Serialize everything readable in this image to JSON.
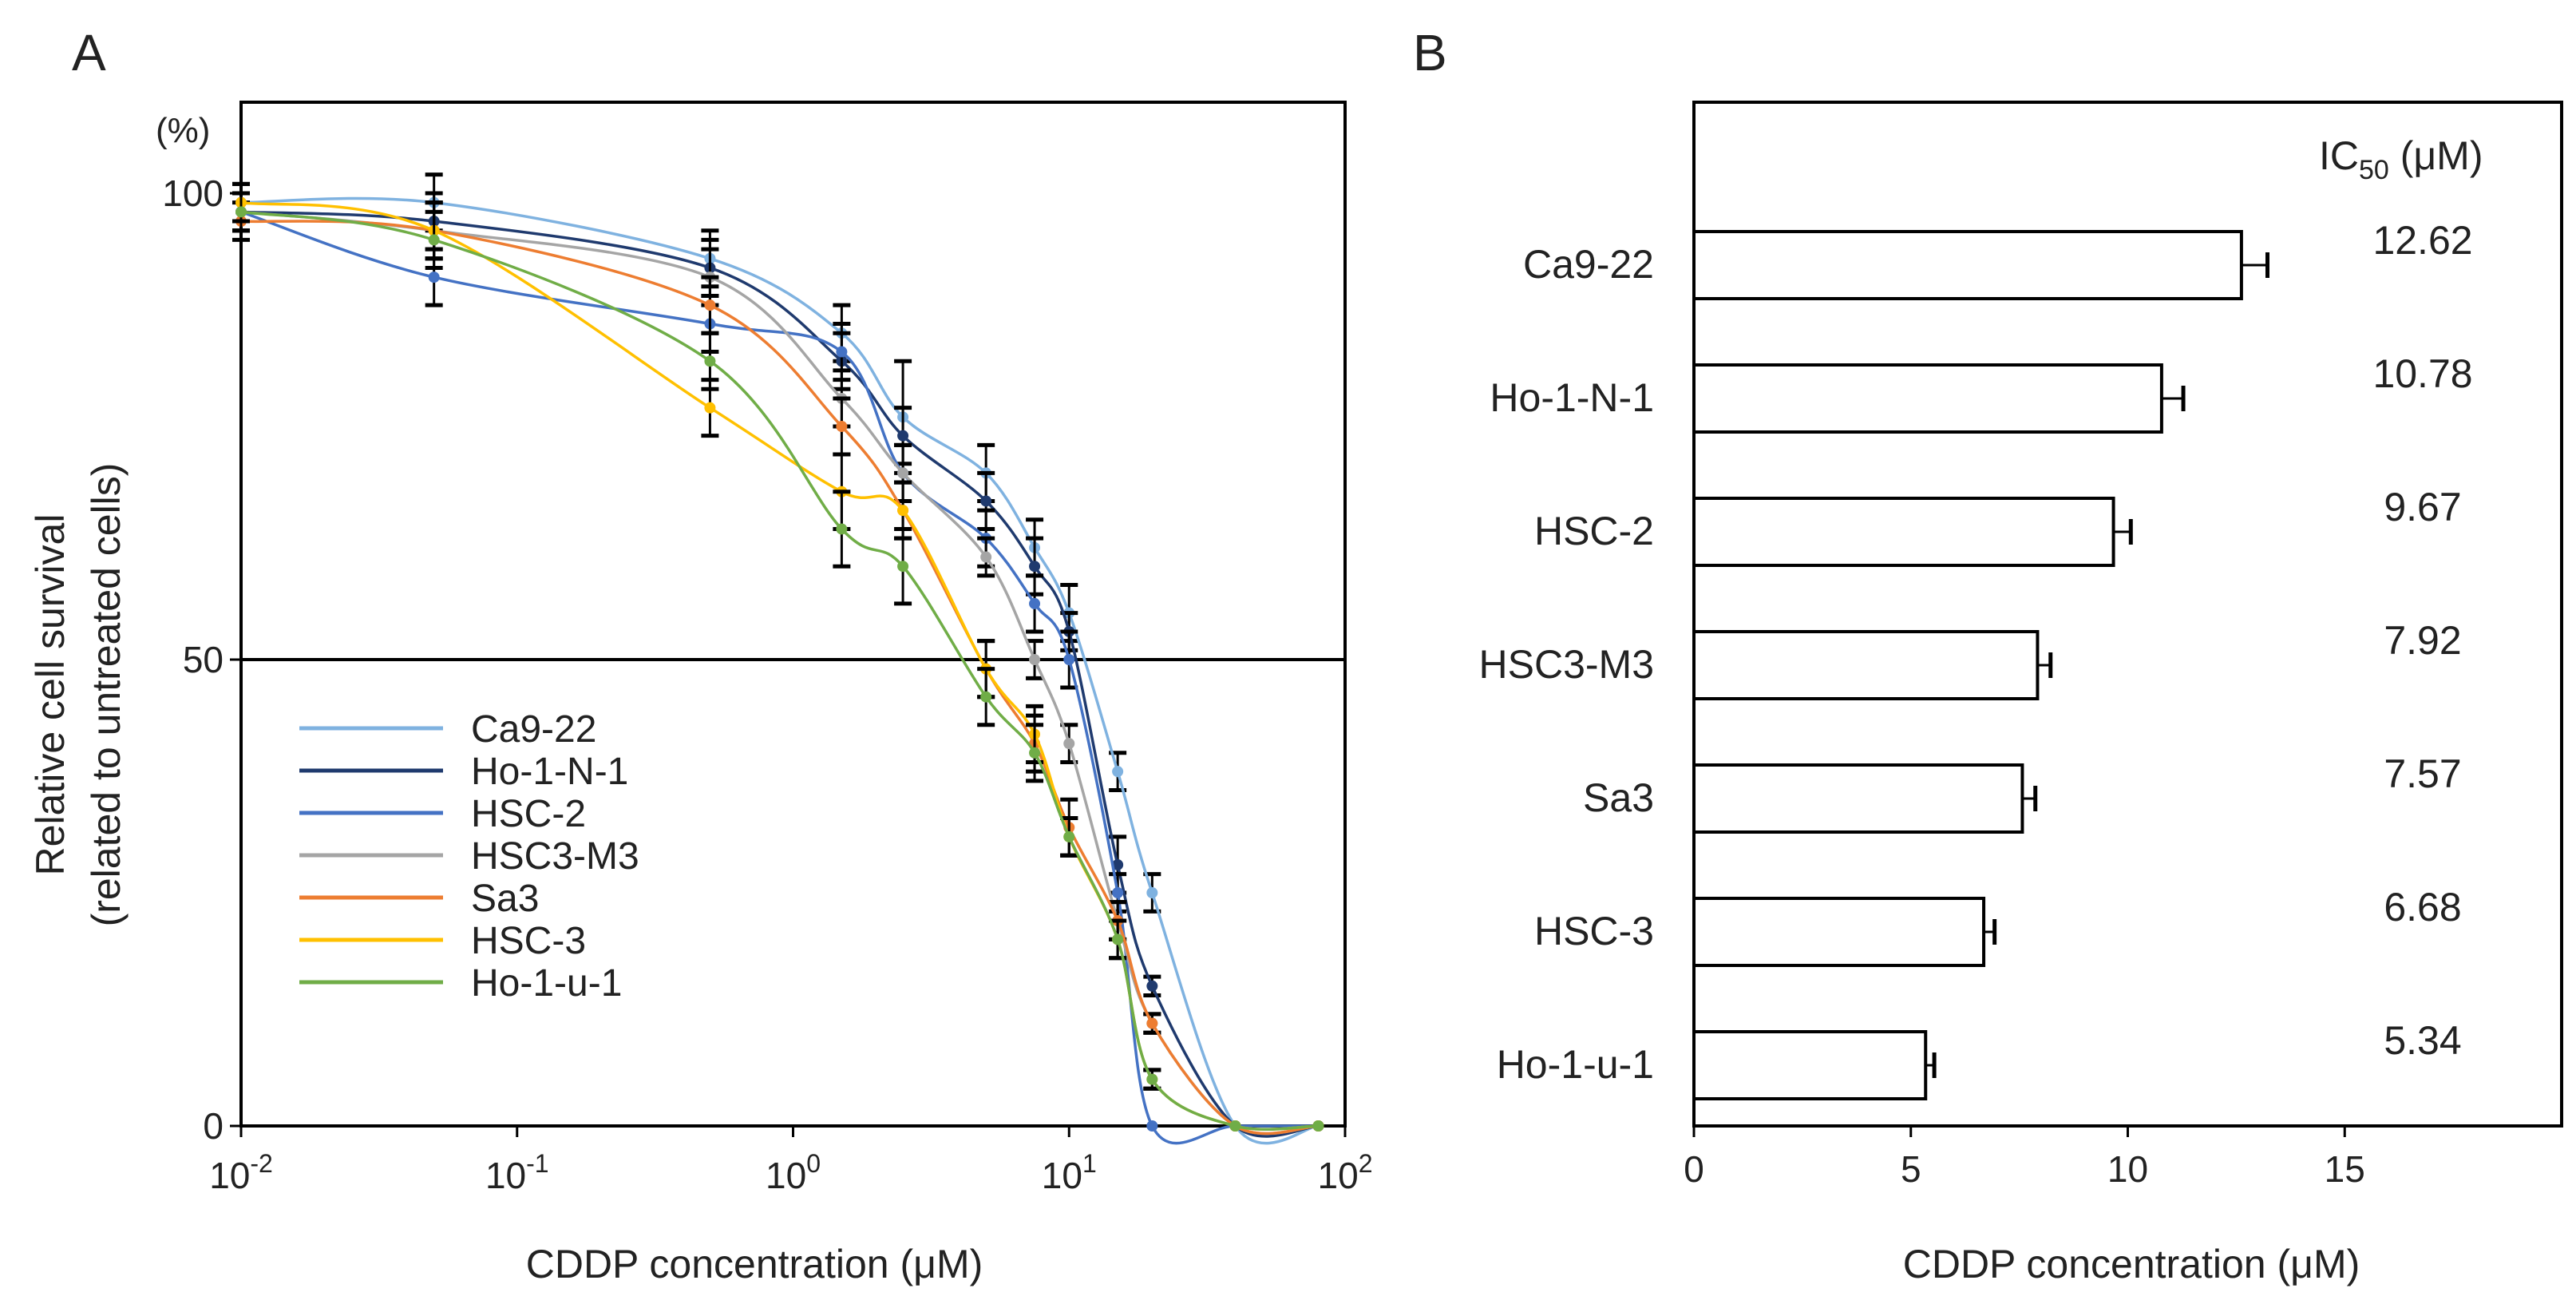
{
  "panel_a": {
    "letter": "A",
    "ylabel_line1": "Relative cell survival",
    "ylabel_line2": "(related to untreated cells)",
    "yunit": "(%)",
    "xlabel": "CDDP concentration (μM)"
  },
  "panel_b": {
    "letter": "B",
    "ic50_header": "IC",
    "ic50_sub": "50",
    "ic50_unit": " (μM)",
    "xlabel": "CDDP concentration (μM)"
  },
  "chart_data": [
    {
      "type": "line",
      "title": "",
      "xlabel": "CDDP concentration (μM)",
      "ylabel": "Relative cell survival (related to untreated cells) (%)",
      "xscale": "log",
      "xlim": [
        0.01,
        100
      ],
      "ylim": [
        0,
        110
      ],
      "yticks": [
        0,
        50,
        100
      ],
      "xticks": [
        {
          "value": 0.01,
          "base": "10",
          "exp": "-2"
        },
        {
          "value": 0.1,
          "base": "10",
          "exp": "-1"
        },
        {
          "value": 1,
          "base": "10",
          "exp": "0"
        },
        {
          "value": 10,
          "base": "10",
          "exp": "1"
        },
        {
          "value": 100,
          "base": "10",
          "exp": "2"
        }
      ],
      "reference_line_y": 50,
      "legend_position": "lower-left",
      "x": [
        0.01,
        0.05,
        0.5,
        1.5,
        2.5,
        5,
        7.5,
        10,
        15,
        20,
        40,
        80
      ],
      "series": [
        {
          "name": "Ca9-22",
          "color": "#7fb2e0",
          "values": [
            99,
            99,
            93,
            85,
            76,
            70,
            62,
            55,
            38,
            25,
            0,
            0
          ],
          "errors": [
            2,
            3,
            3,
            3,
            6,
            3,
            3,
            3,
            2,
            2,
            0,
            0
          ]
        },
        {
          "name": "Ho-1-N-1",
          "color": "#1f3a6e",
          "values": [
            98,
            97,
            92,
            82,
            74,
            67,
            60,
            53,
            28,
            15,
            0,
            0
          ],
          "errors": [
            2,
            3,
            3,
            3,
            3,
            3,
            3,
            2,
            3,
            1,
            0,
            0
          ]
        },
        {
          "name": "HSC-2",
          "color": "#4472c4",
          "values": [
            98,
            91,
            86,
            83,
            70,
            63,
            56,
            50,
            25,
            0,
            0,
            0
          ],
          "errors": [
            2,
            3,
            3,
            3,
            3,
            3,
            3,
            3,
            2,
            0,
            0,
            0
          ]
        },
        {
          "name": "HSC3-M3",
          "color": "#a5a5a5",
          "values": [
            98,
            96,
            91,
            78,
            70,
            61,
            50,
            41,
            22,
            11,
            0,
            0
          ],
          "errors": [
            2,
            3,
            3,
            3,
            3,
            2,
            2,
            2,
            2,
            1,
            0,
            0
          ]
        },
        {
          "name": "Sa3",
          "color": "#ed7d31",
          "values": [
            97,
            96,
            88,
            75,
            66,
            49,
            41,
            32,
            22,
            11,
            0,
            0
          ],
          "errors": [
            2,
            3,
            3,
            3,
            3,
            3,
            3,
            3,
            2,
            1,
            0,
            0
          ]
        },
        {
          "name": "HSC-3",
          "color": "#ffc000",
          "values": [
            99,
            96,
            77,
            68,
            66,
            49,
            42,
            31,
            20,
            5,
            0,
            0
          ],
          "errors": [
            2,
            3,
            3,
            4,
            3,
            3,
            3,
            2,
            2,
            1,
            0,
            0
          ]
        },
        {
          "name": "Ho-1-u-1",
          "color": "#70ad47",
          "values": [
            98,
            95,
            82,
            64,
            60,
            46,
            40,
            31,
            20,
            5,
            0,
            0
          ],
          "errors": [
            2,
            3,
            3,
            4,
            4,
            3,
            3,
            2,
            2,
            1,
            0,
            0
          ]
        }
      ]
    },
    {
      "type": "bar",
      "orientation": "horizontal",
      "title": "",
      "xlabel": "CDDP concentration (μM)",
      "ylabel": "",
      "xlim": [
        0,
        20
      ],
      "xticks": [
        0,
        5,
        10,
        15
      ],
      "categories": [
        "Ca9-22",
        "Ho-1-N-1",
        "HSC-2",
        "HSC3-M3",
        "Sa3",
        "HSC-3",
        "Ho-1-u-1"
      ],
      "values": [
        12.62,
        10.78,
        9.67,
        7.92,
        7.57,
        6.68,
        5.34
      ],
      "value_labels": [
        "12.62",
        "10.78",
        "9.67",
        "7.92",
        "7.57",
        "6.68",
        "5.34"
      ],
      "errors": [
        0.6,
        0.5,
        0.4,
        0.3,
        0.3,
        0.25,
        0.2
      ],
      "bar_color": "#ffffff",
      "bar_edge_color": "#000000"
    }
  ]
}
